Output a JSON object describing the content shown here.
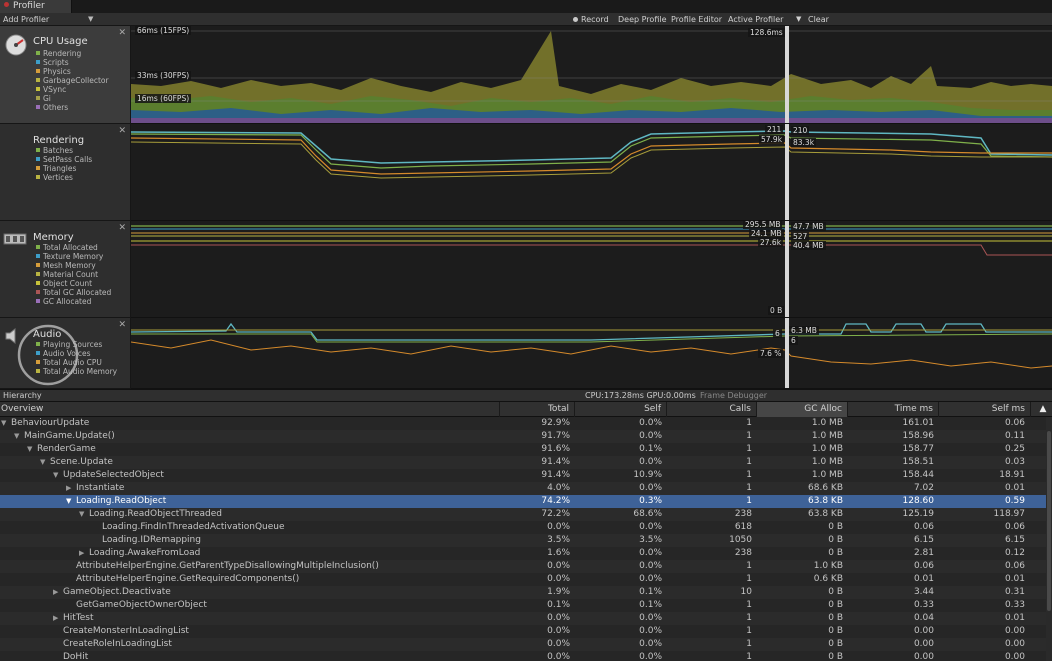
{
  "window": {
    "tab_title": "Profiler"
  },
  "toolbar": {
    "add_profiler": "Add Profiler",
    "record": "Record",
    "deep_profile": "Deep Profile",
    "profile_editor": "Profile Editor",
    "active_profiler": "Active Profiler",
    "clear": "Clear"
  },
  "lanes": {
    "cpu": {
      "title": "CPU Usage",
      "legend": [
        {
          "label": "Rendering",
          "color": "#7fb04a"
        },
        {
          "label": "Scripts",
          "color": "#3d9ec8"
        },
        {
          "label": "Physics",
          "color": "#d59d3b"
        },
        {
          "label": "GarbageCollector",
          "color": "#b9b442"
        },
        {
          "label": "VSync",
          "color": "#c6c23a"
        },
        {
          "label": "Gi",
          "color": "#a4a04a"
        },
        {
          "label": "Others",
          "color": "#9a6fb8"
        }
      ],
      "lines": [
        "66ms (15FPS)",
        "33ms (30FPS)",
        "16ms (60FPS)"
      ],
      "cursor_value": "128.6ms"
    },
    "rendering": {
      "title": "Rendering",
      "legend": [
        {
          "label": "Batches",
          "color": "#7fb04a"
        },
        {
          "label": "SetPass Calls",
          "color": "#3d9ec8"
        },
        {
          "label": "Triangles",
          "color": "#d59d3b"
        },
        {
          "label": "Vertices",
          "color": "#b9b442"
        }
      ],
      "values_left": [
        "211",
        "57.9k"
      ],
      "values_right": [
        "210",
        "83.3k"
      ]
    },
    "memory": {
      "title": "Memory",
      "legend": [
        {
          "label": "Total Allocated",
          "color": "#7fb04a"
        },
        {
          "label": "Texture Memory",
          "color": "#3d9ec8"
        },
        {
          "label": "Mesh Memory",
          "color": "#d59d3b"
        },
        {
          "label": "Material Count",
          "color": "#b9b442"
        },
        {
          "label": "Object Count",
          "color": "#c6c23a"
        },
        {
          "label": "Total GC Allocated",
          "color": "#a55"
        },
        {
          "label": "GC Allocated",
          "color": "#9a6fb8"
        }
      ],
      "values_left": [
        "295.5 MB",
        "24.1 MB",
        "27.6k",
        "0 B"
      ],
      "values_right": [
        "47.7 MB",
        "527",
        "40.4 MB"
      ]
    },
    "audio": {
      "title": "Audio",
      "legend": [
        {
          "label": "Playing Sources",
          "color": "#7fb04a"
        },
        {
          "label": "Audio Voices",
          "color": "#3d9ec8"
        },
        {
          "label": "Total Audio CPU",
          "color": "#d59d3b"
        },
        {
          "label": "Total Audio Memory",
          "color": "#b9b442"
        }
      ],
      "values_left": [
        "6",
        "7.6 %"
      ],
      "values_right": [
        "6.3 MB",
        "6"
      ]
    }
  },
  "midbar": {
    "view": "Hierarchy",
    "stats": "CPU:173.28ms   GPU:0.00ms",
    "frame_debugger": "Frame Debugger"
  },
  "table": {
    "columns": [
      "Overview",
      "Total",
      "Self",
      "Calls",
      "GC Alloc",
      "Time ms",
      "Self ms"
    ],
    "rows": [
      {
        "name": "BehaviourUpdate",
        "depth": 0,
        "expander": "open",
        "total": "92.9%",
        "self": "0.0%",
        "calls": "1",
        "gc": "1.0 MB",
        "time": "161.01",
        "selfms": "0.06"
      },
      {
        "name": "MainGame.Update()",
        "depth": 1,
        "expander": "open",
        "total": "91.7%",
        "self": "0.0%",
        "calls": "1",
        "gc": "1.0 MB",
        "time": "158.96",
        "selfms": "0.11"
      },
      {
        "name": "RenderGame",
        "depth": 2,
        "expander": "open",
        "total": "91.6%",
        "self": "0.1%",
        "calls": "1",
        "gc": "1.0 MB",
        "time": "158.77",
        "selfms": "0.25"
      },
      {
        "name": "Scene.Update",
        "depth": 3,
        "expander": "open",
        "total": "91.4%",
        "self": "0.0%",
        "calls": "1",
        "gc": "1.0 MB",
        "time": "158.51",
        "selfms": "0.03"
      },
      {
        "name": "UpdateSelectedObject",
        "depth": 4,
        "expander": "open",
        "total": "91.4%",
        "self": "10.9%",
        "calls": "1",
        "gc": "1.0 MB",
        "time": "158.44",
        "selfms": "18.91"
      },
      {
        "name": "Instantiate",
        "depth": 5,
        "expander": "closed",
        "total": "4.0%",
        "self": "0.0%",
        "calls": "1",
        "gc": "68.6 KB",
        "time": "7.02",
        "selfms": "0.01"
      },
      {
        "name": "Loading.ReadObject",
        "depth": 5,
        "expander": "open",
        "total": "74.2%",
        "self": "0.3%",
        "calls": "1",
        "gc": "63.8 KB",
        "time": "128.60",
        "selfms": "0.59",
        "selected": true
      },
      {
        "name": "Loading.ReadObjectThreaded",
        "depth": 6,
        "expander": "open",
        "total": "72.2%",
        "self": "68.6%",
        "calls": "238",
        "gc": "63.8 KB",
        "time": "125.19",
        "selfms": "118.97"
      },
      {
        "name": "Loading.FindInThreadedActivationQueue",
        "depth": 7,
        "expander": "none",
        "total": "0.0%",
        "self": "0.0%",
        "calls": "618",
        "gc": "0 B",
        "time": "0.06",
        "selfms": "0.06"
      },
      {
        "name": "Loading.IDRemapping",
        "depth": 7,
        "expander": "none",
        "total": "3.5%",
        "self": "3.5%",
        "calls": "1050",
        "gc": "0 B",
        "time": "6.15",
        "selfms": "6.15"
      },
      {
        "name": "Loading.AwakeFromLoad",
        "depth": 6,
        "expander": "closed",
        "total": "1.6%",
        "self": "0.0%",
        "calls": "238",
        "gc": "0 B",
        "time": "2.81",
        "selfms": "0.12"
      },
      {
        "name": "AttributeHelperEngine.GetParentTypeDisallowingMultipleInclusion()",
        "depth": 5,
        "expander": "none",
        "total": "0.0%",
        "self": "0.0%",
        "calls": "1",
        "gc": "1.0 KB",
        "time": "0.06",
        "selfms": "0.06"
      },
      {
        "name": "AttributeHelperEngine.GetRequiredComponents()",
        "depth": 5,
        "expander": "none",
        "total": "0.0%",
        "self": "0.0%",
        "calls": "1",
        "gc": "0.6 KB",
        "time": "0.01",
        "selfms": "0.01"
      },
      {
        "name": "GameObject.Deactivate",
        "depth": 4,
        "expander": "closed",
        "total": "1.9%",
        "self": "0.1%",
        "calls": "10",
        "gc": "0 B",
        "time": "3.44",
        "selfms": "0.31"
      },
      {
        "name": "GetGameObjectOwnerObject",
        "depth": 5,
        "expander": "none",
        "total": "0.1%",
        "self": "0.1%",
        "calls": "1",
        "gc": "0 B",
        "time": "0.33",
        "selfms": "0.33"
      },
      {
        "name": "HitTest",
        "depth": 4,
        "expander": "closed",
        "total": "0.0%",
        "self": "0.0%",
        "calls": "1",
        "gc": "0 B",
        "time": "0.04",
        "selfms": "0.01"
      },
      {
        "name": "CreateMonsterInLoadingList",
        "depth": 4,
        "expander": "none",
        "total": "0.0%",
        "self": "0.0%",
        "calls": "1",
        "gc": "0 B",
        "time": "0.00",
        "selfms": "0.00"
      },
      {
        "name": "CreateRoleInLoadingList",
        "depth": 4,
        "expander": "none",
        "total": "0.0%",
        "self": "0.0%",
        "calls": "1",
        "gc": "0 B",
        "time": "0.00",
        "selfms": "0.00"
      },
      {
        "name": "DoHit",
        "depth": 4,
        "expander": "none",
        "total": "0.0%",
        "self": "0.0%",
        "calls": "1",
        "gc": "0 B",
        "time": "0.00",
        "selfms": "0.00"
      }
    ]
  }
}
